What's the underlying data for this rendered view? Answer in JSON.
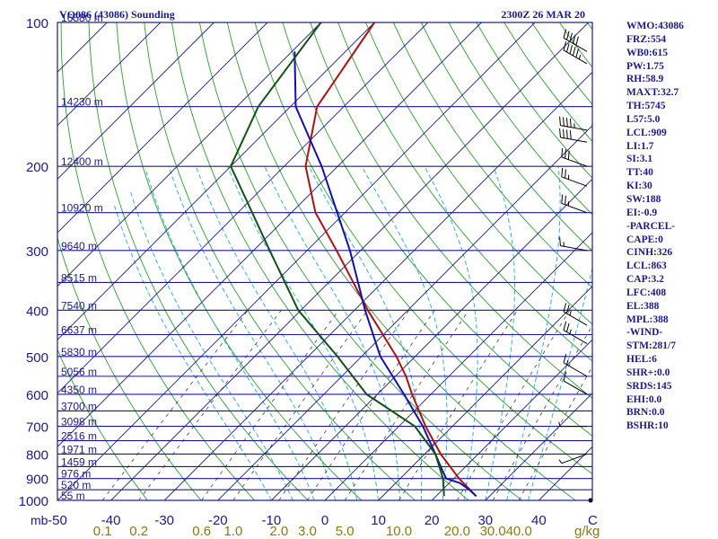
{
  "title_left": "VQ086 (43086) Sounding",
  "title_right": "2300Z 26 MAR 20",
  "chart_data": {
    "type": "skew-t log-p sounding",
    "y_axis": {
      "label": "mb",
      "scale": "log",
      "range_hpa": [
        100,
        1000
      ],
      "ticks": [
        100,
        200,
        300,
        400,
        500,
        600,
        700,
        800,
        900,
        1000
      ]
    },
    "x_axis": {
      "label": "C",
      "range_c": [
        -50,
        50
      ],
      "ticks": [
        -50,
        -40,
        -30,
        -20,
        -10,
        0,
        10,
        20,
        30,
        40
      ]
    },
    "mixing_ratio_axis": {
      "label": "g/kg",
      "ticks": [
        "0.1",
        "0.2",
        "0.6",
        "1.0",
        "2.0",
        "3.0",
        "5.0",
        "10.0",
        "20.0",
        "30.0",
        "40.0"
      ],
      "values": [
        0.1,
        0.2,
        0.6,
        1.0,
        2.0,
        3.0,
        5.0,
        10.0,
        20.0,
        30.0,
        40.0
      ]
    },
    "height_levels": [
      {
        "p": 100,
        "label": "16580 m"
      },
      {
        "p": 150,
        "label": "14230 m"
      },
      {
        "p": 200,
        "label": "12400 m"
      },
      {
        "p": 250,
        "label": "10920 m"
      },
      {
        "p": 300,
        "label": "9640 m"
      },
      {
        "p": 350,
        "label": "8515 m"
      },
      {
        "p": 400,
        "label": "7540 m"
      },
      {
        "p": 450,
        "label": "6637 m"
      },
      {
        "p": 500,
        "label": "5830 m"
      },
      {
        "p": 550,
        "label": "5056 m"
      },
      {
        "p": 600,
        "label": "4350 m"
      },
      {
        "p": 650,
        "label": "3700 m"
      },
      {
        "p": 700,
        "label": "3098 m"
      },
      {
        "p": 750,
        "label": "2516 m"
      },
      {
        "p": 800,
        "label": "1971 m"
      },
      {
        "p": 850,
        "label": "1459 m"
      },
      {
        "p": 900,
        "label": "976 m"
      },
      {
        "p": 950,
        "label": "520 m"
      },
      {
        "p": 1000,
        "label": "55 m"
      }
    ],
    "series": [
      {
        "name": "temperature",
        "color": "#b01010",
        "points": [
          {
            "p": 980,
            "t": 27.5
          },
          {
            "p": 900,
            "t": 21.0
          },
          {
            "p": 800,
            "t": 13.0
          },
          {
            "p": 700,
            "t": 5.0
          },
          {
            "p": 600,
            "t": -3.5
          },
          {
            "p": 550,
            "t": -8.0
          },
          {
            "p": 500,
            "t": -13.5
          },
          {
            "p": 400,
            "t": -27.5
          },
          {
            "p": 300,
            "t": -44.5
          },
          {
            "p": 250,
            "t": -55.5
          },
          {
            "p": 200,
            "t": -66.0
          },
          {
            "p": 150,
            "t": -75.0
          },
          {
            "p": 100,
            "t": -80.0
          }
        ]
      },
      {
        "name": "parcel",
        "color": "#1010b0",
        "points": [
          {
            "p": 980,
            "t": 27.5
          },
          {
            "p": 950,
            "t": 25.0
          },
          {
            "p": 920,
            "t": 22.0
          },
          {
            "p": 900,
            "t": 18.6
          },
          {
            "p": 860,
            "t": 16.0
          },
          {
            "p": 800,
            "t": 12.0
          },
          {
            "p": 700,
            "t": 4.5
          },
          {
            "p": 600,
            "t": -5.0
          },
          {
            "p": 500,
            "t": -16.5
          },
          {
            "p": 400,
            "t": -28.0
          },
          {
            "p": 300,
            "t": -42.0
          },
          {
            "p": 200,
            "t": -63.0
          },
          {
            "p": 150,
            "t": -79.0
          },
          {
            "p": 115,
            "t": -89.5
          }
        ]
      },
      {
        "name": "dewpoint",
        "color": "#145214",
        "points": [
          {
            "p": 980,
            "t": 21.5
          },
          {
            "p": 900,
            "t": 18.0
          },
          {
            "p": 800,
            "t": 12.0
          },
          {
            "p": 700,
            "t": 3.0
          },
          {
            "p": 600,
            "t": -12.0
          },
          {
            "p": 500,
            "t": -24.5
          },
          {
            "p": 400,
            "t": -40.5
          },
          {
            "p": 300,
            "t": -57.0
          },
          {
            "p": 200,
            "t": -80.0
          },
          {
            "p": 150,
            "t": -86.0
          },
          {
            "p": 100,
            "t": -90.0
          }
        ]
      }
    ],
    "wind_barbs": [
      {
        "p": 115,
        "dir": 300,
        "kt": 50
      },
      {
        "p": 122,
        "dir": 300,
        "kt": 55
      },
      {
        "p": 168,
        "dir": 280,
        "kt": 45
      },
      {
        "p": 178,
        "dir": 280,
        "kt": 40
      },
      {
        "p": 200,
        "dir": 290,
        "kt": 30
      },
      {
        "p": 220,
        "dir": 290,
        "kt": 25
      },
      {
        "p": 250,
        "dir": 290,
        "kt": 25
      },
      {
        "p": 300,
        "dir": 280,
        "kt": 15
      },
      {
        "p": 430,
        "dir": 300,
        "kt": 25
      },
      {
        "p": 470,
        "dir": 300,
        "kt": 25
      },
      {
        "p": 550,
        "dir": 300,
        "kt": 15
      },
      {
        "p": 600,
        "dir": 300,
        "kt": 10
      },
      {
        "p": 700,
        "dir": 270,
        "kt": 5
      },
      {
        "p": 800,
        "dir": 250,
        "kt": 5
      },
      {
        "p": 1000,
        "dir": 90,
        "kt": 0
      }
    ]
  },
  "stats": [
    "WMO:43086",
    "FRZ:554",
    "WB0:615",
    "PW:1.75",
    "RH:58.9",
    "MAXT:32.7",
    "TH:5745",
    "L57:5.0",
    "LCL:909",
    "LI:1.7",
    "SI:3.1",
    "TT:40",
    "KI:30",
    "SW:188",
    "EI:-0.9",
    "-PARCEL-",
    "CAPE:0",
    "CINH:326",
    "LCL:863",
    "CAP:3.2",
    "LFC:408",
    "EL:388",
    "MPL:388",
    "-WIND-",
    "STM:281/7",
    "HEL:6",
    "SHR+:0.0",
    "SRDS:145",
    "EHI:0.0",
    "BRN:0.0",
    "BSHR:10"
  ],
  "colors": {
    "frame": "#1a1a8c",
    "isobar": "#1a1a8c",
    "isotherm": "#1a1a8c",
    "dry_adiabat": "#2aa02a",
    "moist_adiabat": "#20a8d8",
    "mixing_ratio": "#404040",
    "olive_text": "#8a7a10",
    "barb": "#000000"
  }
}
